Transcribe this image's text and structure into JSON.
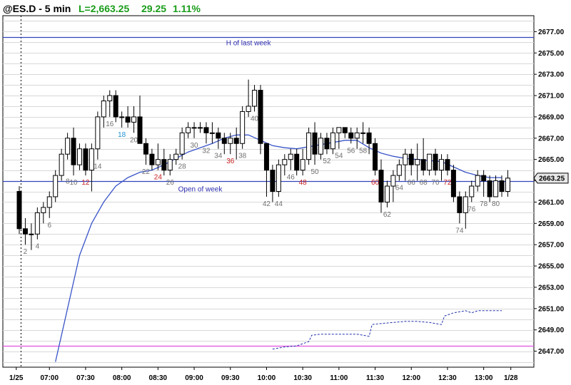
{
  "header": {
    "symbol": "@ES.D - 5 min",
    "last": "L=2,663.25",
    "change": "29.25",
    "pct": "1.11%"
  },
  "colors": {
    "value_green": "#1a9c1a",
    "ema_blue": "#3a55c8",
    "level_blue": "#3344bb",
    "magenta": "#e050e0",
    "num_gray": "#707070",
    "num_red": "#c82020",
    "num_blue": "#1e90d0",
    "grid": "#d8d8d8"
  },
  "chart_data": {
    "type": "candlestick",
    "title": "@ES.D - 5 min",
    "ylim": [
      2645.5,
      2678.5
    ],
    "y_ticks": [
      2647,
      2649,
      2651,
      2653,
      2655,
      2657,
      2659,
      2661,
      2663,
      2665,
      2667,
      2669,
      2671,
      2673,
      2675,
      2677
    ],
    "y_tick_labels": [
      "2647.00",
      "2649.00",
      "2651.00",
      "2653.00",
      "2655.00",
      "2657.00",
      "2659.00",
      "2661.00",
      "2663.00",
      "2665.00",
      "2667.00",
      "2669.00",
      "2671.00",
      "2673.00",
      "2675.00",
      "2677.00"
    ],
    "x_ticks": [
      {
        "bar": -0.5,
        "label": "1/25"
      },
      {
        "bar": 5,
        "label": "07:00"
      },
      {
        "bar": 11,
        "label": "07:30"
      },
      {
        "bar": 17,
        "label": "08:00"
      },
      {
        "bar": 23,
        "label": "08:30"
      },
      {
        "bar": 29,
        "label": "09:00"
      },
      {
        "bar": 35,
        "label": "09:30"
      },
      {
        "bar": 41,
        "label": "10:00"
      },
      {
        "bar": 47,
        "label": "10:30"
      },
      {
        "bar": 53,
        "label": "11:00"
      },
      {
        "bar": 59,
        "label": "11:30"
      },
      {
        "bar": 65,
        "label": "12:00"
      },
      {
        "bar": 71,
        "label": "12:30"
      },
      {
        "bar": 77,
        "label": "13:00"
      },
      {
        "bar": 81.5,
        "label": "1/28"
      }
    ],
    "last_price": "2663.25",
    "levels": [
      {
        "value": 2676.5,
        "label": "H of last week",
        "label_bar": 38
      },
      {
        "value": 2663.0,
        "label": "Open of week",
        "label_bar": 30
      },
      {
        "value": 2647.5,
        "label": "",
        "label_bar": 0
      }
    ],
    "day_divider_bar": 1,
    "ohlc": [
      [
        2662.0,
        2662.5,
        2658.0,
        2658.5
      ],
      [
        2658.5,
        2659.5,
        2657.0,
        2658.0
      ],
      [
        2658.0,
        2659.0,
        2656.5,
        2658.0
      ],
      [
        2658.0,
        2660.5,
        2657.5,
        2660.0
      ],
      [
        2660.0,
        2661.0,
        2659.0,
        2660.5
      ],
      [
        2660.5,
        2662.0,
        2659.5,
        2661.5
      ],
      [
        2661.5,
        2664.0,
        2661.0,
        2663.5
      ],
      [
        2663.5,
        2666.0,
        2663.0,
        2665.5
      ],
      [
        2665.5,
        2667.5,
        2665.0,
        2667.0
      ],
      [
        2667.0,
        2668.0,
        2663.5,
        2664.5
      ],
      [
        2664.5,
        2666.5,
        2664.0,
        2666.0
      ],
      [
        2666.0,
        2666.5,
        2663.5,
        2664.0
      ],
      [
        2664.0,
        2666.5,
        2662.0,
        2666.0
      ],
      [
        2666.0,
        2669.5,
        2665.0,
        2669.0
      ],
      [
        2669.0,
        2671.0,
        2668.0,
        2670.5
      ],
      [
        2670.5,
        2671.5,
        2669.0,
        2671.0
      ],
      [
        2671.0,
        2671.5,
        2668.5,
        2669.0
      ],
      [
        2669.0,
        2669.5,
        2668.0,
        2669.0
      ],
      [
        2669.0,
        2670.0,
        2668.0,
        2668.5
      ],
      [
        2668.5,
        2670.0,
        2667.5,
        2669.0
      ],
      [
        2669.0,
        2671.0,
        2666.5,
        2666.5
      ],
      [
        2666.5,
        2667.0,
        2664.5,
        2665.5
      ],
      [
        2665.5,
        2666.0,
        2664.0,
        2664.5
      ],
      [
        2664.5,
        2666.5,
        2664.0,
        2665.0
      ],
      [
        2665.0,
        2666.0,
        2663.5,
        2664.0
      ],
      [
        2664.0,
        2665.5,
        2663.5,
        2665.0
      ],
      [
        2665.0,
        2666.0,
        2664.5,
        2665.5
      ],
      [
        2665.5,
        2668.0,
        2665.0,
        2667.5
      ],
      [
        2667.5,
        2668.5,
        2667.0,
        2668.0
      ],
      [
        2668.0,
        2668.5,
        2667.0,
        2668.0
      ],
      [
        2668.0,
        2668.5,
        2667.5,
        2668.0
      ],
      [
        2668.0,
        2668.5,
        2666.5,
        2667.5
      ],
      [
        2667.5,
        2668.5,
        2666.5,
        2667.5
      ],
      [
        2667.5,
        2668.0,
        2666.0,
        2667.0
      ],
      [
        2667.0,
        2667.5,
        2665.5,
        2666.5
      ],
      [
        2666.5,
        2667.5,
        2665.5,
        2667.0
      ],
      [
        2667.0,
        2668.0,
        2665.0,
        2666.5
      ],
      [
        2666.5,
        2670.0,
        2666.0,
        2669.5
      ],
      [
        2669.5,
        2672.5,
        2669.0,
        2670.0
      ],
      [
        2670.0,
        2672.0,
        2669.5,
        2671.5
      ],
      [
        2671.5,
        2672.0,
        2665.5,
        2666.5
      ],
      [
        2666.5,
        2666.5,
        2661.5,
        2664.0
      ],
      [
        2664.0,
        2664.5,
        2661.0,
        2662.0
      ],
      [
        2662.0,
        2665.0,
        2661.5,
        2664.5
      ],
      [
        2664.5,
        2665.5,
        2663.5,
        2665.0
      ],
      [
        2665.0,
        2666.0,
        2664.0,
        2665.5
      ],
      [
        2665.5,
        2666.0,
        2663.5,
        2664.0
      ],
      [
        2664.0,
        2666.0,
        2663.5,
        2665.0
      ],
      [
        2665.0,
        2668.0,
        2664.5,
        2667.5
      ],
      [
        2667.5,
        2668.5,
        2664.5,
        2665.5
      ],
      [
        2665.5,
        2667.5,
        2665.0,
        2667.0
      ],
      [
        2667.0,
        2667.5,
        2665.5,
        2666.0
      ],
      [
        2666.0,
        2668.0,
        2665.5,
        2667.5
      ],
      [
        2667.5,
        2668.0,
        2666.0,
        2668.0
      ],
      [
        2668.0,
        2668.0,
        2667.0,
        2667.5
      ],
      [
        2667.5,
        2668.0,
        2666.5,
        2667.0
      ],
      [
        2667.0,
        2668.0,
        2666.0,
        2667.5
      ],
      [
        2667.5,
        2668.5,
        2666.5,
        2667.5
      ],
      [
        2667.5,
        2668.0,
        2665.5,
        2666.5
      ],
      [
        2666.5,
        2667.0,
        2663.5,
        2664.0
      ],
      [
        2664.0,
        2665.0,
        2660.0,
        2661.0
      ],
      [
        2661.0,
        2663.0,
        2660.5,
        2662.5
      ],
      [
        2662.5,
        2664.0,
        2661.0,
        2663.5
      ],
      [
        2663.5,
        2665.0,
        2663.0,
        2664.5
      ],
      [
        2664.5,
        2666.0,
        2663.0,
        2665.5
      ],
      [
        2665.5,
        2666.0,
        2663.5,
        2664.5
      ],
      [
        2664.5,
        2666.5,
        2663.0,
        2665.0
      ],
      [
        2665.0,
        2667.0,
        2663.5,
        2664.0
      ],
      [
        2664.0,
        2665.5,
        2663.5,
        2665.5
      ],
      [
        2665.5,
        2666.0,
        2663.5,
        2664.0
      ],
      [
        2664.0,
        2665.5,
        2663.0,
        2665.0
      ],
      [
        2665.0,
        2665.5,
        2663.5,
        2664.0
      ],
      [
        2664.0,
        2664.5,
        2661.0,
        2661.5
      ],
      [
        2661.5,
        2662.0,
        2659.0,
        2660.0
      ],
      [
        2660.0,
        2662.0,
        2658.5,
        2661.5
      ],
      [
        2661.5,
        2663.0,
        2661.0,
        2662.5
      ],
      [
        2662.5,
        2664.0,
        2662.0,
        2663.5
      ],
      [
        2663.5,
        2664.0,
        2661.5,
        2663.0
      ],
      [
        2663.0,
        2663.5,
        2661.0,
        2661.5
      ],
      [
        2661.5,
        2663.5,
        2661.5,
        2663.0
      ],
      [
        2663.0,
        2663.5,
        2661.5,
        2662.0
      ],
      [
        2662.0,
        2664.0,
        2661.5,
        2663.25
      ]
    ],
    "bar_labels": [
      {
        "bar": 1,
        "text": "2",
        "color": "gray",
        "pos": "below"
      },
      {
        "bar": 3,
        "text": "4",
        "color": "gray",
        "pos": "below"
      },
      {
        "bar": 5,
        "text": "6",
        "color": "gray",
        "pos": "below"
      },
      {
        "bar": 7,
        "text": "8",
        "color": "gray",
        "pos": "right"
      },
      {
        "bar": 9,
        "text": "10",
        "color": "gray",
        "pos": "below"
      },
      {
        "bar": 11,
        "text": "12",
        "color": "red",
        "pos": "below"
      },
      {
        "bar": 13,
        "text": "14",
        "color": "gray",
        "pos": "below"
      },
      {
        "bar": 15,
        "text": "16",
        "color": "gray",
        "pos": "below"
      },
      {
        "bar": 17,
        "text": "18",
        "color": "blue",
        "pos": "below"
      },
      {
        "bar": 19,
        "text": "20",
        "color": "gray",
        "pos": "below"
      },
      {
        "bar": 21,
        "text": "22",
        "color": "gray",
        "pos": "below"
      },
      {
        "bar": 23,
        "text": "24",
        "color": "red",
        "pos": "below"
      },
      {
        "bar": 25,
        "text": "26",
        "color": "gray",
        "pos": "below"
      },
      {
        "bar": 27,
        "text": "28",
        "color": "gray",
        "pos": "below"
      },
      {
        "bar": 29,
        "text": "30",
        "color": "gray",
        "pos": "below"
      },
      {
        "bar": 31,
        "text": "32",
        "color": "gray",
        "pos": "below"
      },
      {
        "bar": 33,
        "text": "34",
        "color": "gray",
        "pos": "below"
      },
      {
        "bar": 35,
        "text": "36",
        "color": "red",
        "pos": "below"
      },
      {
        "bar": 37,
        "text": "38",
        "color": "gray",
        "pos": "below"
      },
      {
        "bar": 39,
        "text": "40",
        "color": "gray",
        "pos": "below"
      },
      {
        "bar": 41,
        "text": "42",
        "color": "gray",
        "pos": "below"
      },
      {
        "bar": 43,
        "text": "44",
        "color": "gray",
        "pos": "below"
      },
      {
        "bar": 45,
        "text": "46",
        "color": "gray",
        "pos": "below"
      },
      {
        "bar": 47,
        "text": "48",
        "color": "red",
        "pos": "below"
      },
      {
        "bar": 49,
        "text": "50",
        "color": "gray",
        "pos": "below"
      },
      {
        "bar": 51,
        "text": "52",
        "color": "gray",
        "pos": "below"
      },
      {
        "bar": 53,
        "text": "54",
        "color": "gray",
        "pos": "below"
      },
      {
        "bar": 55,
        "text": "56",
        "color": "gray",
        "pos": "below"
      },
      {
        "bar": 57,
        "text": "58",
        "color": "gray",
        "pos": "below"
      },
      {
        "bar": 59,
        "text": "60",
        "color": "red",
        "pos": "below"
      },
      {
        "bar": 61,
        "text": "62",
        "color": "gray",
        "pos": "below"
      },
      {
        "bar": 63,
        "text": "64",
        "color": "gray",
        "pos": "below"
      },
      {
        "bar": 65,
        "text": "66",
        "color": "gray",
        "pos": "below"
      },
      {
        "bar": 67,
        "text": "68",
        "color": "gray",
        "pos": "below"
      },
      {
        "bar": 69,
        "text": "70",
        "color": "gray",
        "pos": "below"
      },
      {
        "bar": 71,
        "text": "72",
        "color": "red",
        "pos": "below"
      },
      {
        "bar": 73,
        "text": "74",
        "color": "gray",
        "pos": "below"
      },
      {
        "bar": 75,
        "text": "76",
        "color": "gray",
        "pos": "below"
      },
      {
        "bar": 77,
        "text": "78",
        "color": "gray",
        "pos": "below"
      },
      {
        "bar": 79,
        "text": "80",
        "color": "gray",
        "pos": "below"
      }
    ],
    "ema": [
      [
        6,
        2646.0
      ],
      [
        8,
        2651.0
      ],
      [
        10,
        2656.0
      ],
      [
        12,
        2659.0
      ],
      [
        14,
        2661.0
      ],
      [
        16,
        2662.5
      ],
      [
        18,
        2663.3
      ],
      [
        20,
        2663.8
      ],
      [
        22,
        2664.0
      ],
      [
        24,
        2664.5
      ],
      [
        26,
        2665.1
      ],
      [
        28,
        2665.7
      ],
      [
        30,
        2666.1
      ],
      [
        32,
        2666.5
      ],
      [
        34,
        2667.0
      ],
      [
        36,
        2667.3
      ],
      [
        38,
        2667.3
      ],
      [
        40,
        2666.8
      ],
      [
        42,
        2666.3
      ],
      [
        44,
        2666.1
      ],
      [
        46,
        2666.0
      ],
      [
        48,
        2666.2
      ],
      [
        50,
        2666.4
      ],
      [
        52,
        2666.6
      ],
      [
        54,
        2666.8
      ],
      [
        56,
        2666.8
      ],
      [
        58,
        2666.1
      ],
      [
        60,
        2665.6
      ],
      [
        62,
        2665.3
      ],
      [
        64,
        2665.1
      ],
      [
        66,
        2665.0
      ],
      [
        68,
        2664.9
      ],
      [
        70,
        2664.8
      ],
      [
        72,
        2664.3
      ],
      [
        74,
        2663.8
      ],
      [
        76,
        2663.5
      ],
      [
        78,
        2663.3
      ],
      [
        80,
        2663.3
      ]
    ],
    "dotted_series": [
      [
        42,
        2647.2
      ],
      [
        44,
        2647.4
      ],
      [
        46,
        2647.5
      ],
      [
        48,
        2647.9
      ],
      [
        48.5,
        2648.5
      ],
      [
        50,
        2648.6
      ],
      [
        52,
        2648.6
      ],
      [
        54,
        2648.6
      ],
      [
        56,
        2648.6
      ],
      [
        58,
        2648.4
      ],
      [
        58.5,
        2649.5
      ],
      [
        60,
        2649.6
      ],
      [
        62,
        2649.7
      ],
      [
        64,
        2649.8
      ],
      [
        66,
        2649.8
      ],
      [
        68,
        2649.7
      ],
      [
        70,
        2649.5
      ],
      [
        70.5,
        2650.3
      ],
      [
        72,
        2650.6
      ],
      [
        74,
        2650.8
      ],
      [
        75,
        2650.6
      ],
      [
        76,
        2650.8
      ],
      [
        78,
        2650.8
      ],
      [
        80,
        2650.8
      ]
    ]
  }
}
